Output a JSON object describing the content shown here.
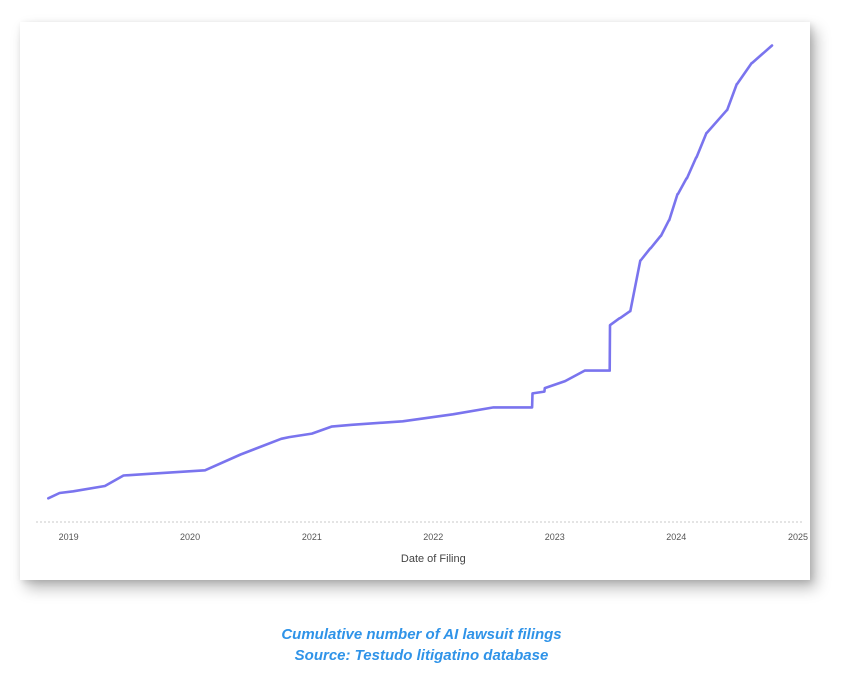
{
  "chart_data": {
    "type": "line",
    "title": "",
    "xlabel": "Date of Filing",
    "ylabel": "",
    "x_ticks": [
      "2019",
      "2020",
      "2021",
      "2022",
      "2023",
      "2024",
      "2025"
    ],
    "xlim": [
      "2018-10-01",
      "2025-01-01"
    ],
    "grid": false,
    "legend": "none",
    "line_color": "#7a74ee",
    "series": [
      {
        "x": [
          "2018-11-01",
          "2018-12-05",
          "2019-01-15",
          "2019-04-20",
          "2019-06-15",
          "2019-09-01",
          "2020-02-15",
          "2020-06-01",
          "2020-10-01",
          "2020-10-25",
          "2021-01-01",
          "2021-03-01",
          "2021-05-01",
          "2021-10-01",
          "2022-03-01",
          "2022-07-01",
          "2022-10-25",
          "2022-10-26",
          "2022-12-01",
          "2022-12-02",
          "2023-02-01",
          "2023-04-01",
          "2023-06-15",
          "2023-06-16",
          "2023-07-15",
          "2023-07-16",
          "2023-08-15",
          "2023-08-16",
          "2023-09-15",
          "2023-09-16",
          "2023-10-15",
          "2023-10-16",
          "2023-11-15",
          "2023-11-16",
          "2023-12-10",
          "2023-12-11",
          "2024-01-05",
          "2024-01-06",
          "2024-02-01",
          "2024-02-02",
          "2024-03-01",
          "2024-03-02",
          "2024-04-01",
          "2024-04-02",
          "2024-06-01",
          "2024-06-02",
          "2024-07-01",
          "2024-07-02",
          "2024-08-15",
          "2024-08-16",
          "2024-10-15"
        ],
        "y": [
          1,
          4,
          5,
          8,
          14,
          15,
          17,
          26,
          35,
          36,
          38,
          42,
          43,
          45,
          49,
          53,
          53,
          61,
          62,
          64,
          68,
          74,
          74,
          100,
          104,
          104,
          108,
          108,
          137,
          137,
          144,
          144,
          151,
          151,
          160,
          160,
          175,
          175,
          184,
          184,
          196,
          196,
          210,
          210,
          223,
          223,
          238,
          238,
          250,
          250,
          260
        ]
      }
    ]
  },
  "caption": {
    "line1": "Cumulative number of AI lawsuit filings",
    "line2": "Source: Testudo litigatino database"
  }
}
